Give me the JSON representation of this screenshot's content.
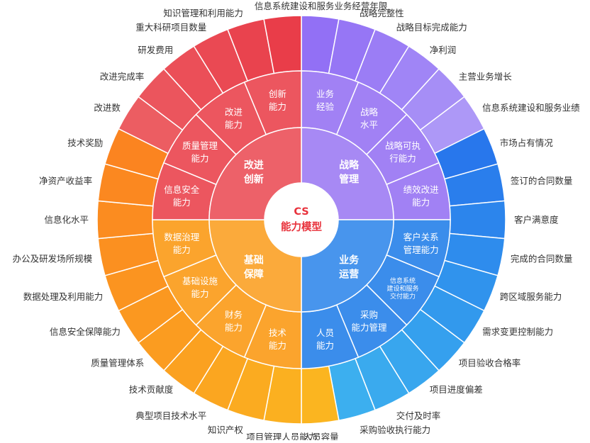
{
  "center": {
    "line1": "CS",
    "line2": "能力模型"
  },
  "colors": {
    "innovation": "#eb4b55",
    "strategy": "#9b79f3",
    "operation": "#2f86ea",
    "support": "#fb9e20",
    "line": "#ffffff",
    "text": "#333333",
    "center_text": "#e8323c"
  },
  "quadrants": [
    {
      "id": "strategy",
      "label": [
        "战略",
        "管理"
      ],
      "color": "#9b79f3",
      "start": 0,
      "end": 90,
      "subs": [
        {
          "label": [
            "业务",
            "经验"
          ],
          "start": 0,
          "end": 22.5
        },
        {
          "label": [
            "战略",
            "水平"
          ],
          "start": 22.5,
          "end": 45
        },
        {
          "label": [
            "战略可执",
            "行能力"
          ],
          "start": 45,
          "end": 67.5
        },
        {
          "label": [
            "绩效改进",
            "能力"
          ],
          "start": 67.5,
          "end": 90
        }
      ]
    },
    {
      "id": "operation",
      "label": [
        "业务",
        "运营"
      ],
      "color": "#2f86ea",
      "start": 90,
      "end": 180,
      "subs": [
        {
          "label": [
            "客户关系",
            "管理能力"
          ],
          "start": 90,
          "end": 112.5
        },
        {
          "label": [
            "信息系统",
            "建设和服务",
            "交付能力"
          ],
          "small": true,
          "start": 112.5,
          "end": 135
        },
        {
          "label": [
            "采购",
            "能力管理"
          ],
          "start": 135,
          "end": 157.5
        },
        {
          "label": [
            "人员",
            "能力"
          ],
          "start": 157.5,
          "end": 180
        }
      ]
    },
    {
      "id": "support",
      "label": [
        "基础",
        "保障"
      ],
      "color": "#fb9e20",
      "start": 180,
      "end": 270,
      "subs": [
        {
          "label": [
            "技术",
            "能力"
          ],
          "start": 180,
          "end": 202.5
        },
        {
          "label": [
            "财务",
            "能力"
          ],
          "start": 202.5,
          "end": 225
        },
        {
          "label": [
            "基础设施",
            "能力"
          ],
          "start": 225,
          "end": 247.5
        },
        {
          "label": [
            "数据治理",
            "能力"
          ],
          "start": 247.5,
          "end": 270
        }
      ]
    },
    {
      "id": "innovation",
      "label": [
        "改进",
        "创新"
      ],
      "color": "#eb4b55",
      "start": 270,
      "end": 360,
      "subs": [
        {
          "label": [
            "信息安全",
            "能力"
          ],
          "start": 270,
          "end": 292.5
        },
        {
          "label": [
            "质量管理",
            "能力"
          ],
          "start": 292.5,
          "end": 315
        },
        {
          "label": [
            "改进",
            "能力"
          ],
          "start": 315,
          "end": 337.5
        },
        {
          "label": [
            "创新",
            "能力"
          ],
          "start": 337.5,
          "end": 360
        }
      ]
    }
  ],
  "outer": [
    {
      "label": "信息系统建设和服务业务经营年限",
      "color": "#9270f5"
    },
    {
      "label": "战略完整性",
      "color": "#9676f5"
    },
    {
      "label": "战略目标完成能力",
      "color": "#9b7df5"
    },
    {
      "label": "净利润",
      "color": "#a085f6"
    },
    {
      "label": "主营业务增长",
      "color": "#a68ef6"
    },
    {
      "label": "信息系统建设和服务业绩",
      "color": "#ad98f7"
    },
    {
      "label": "市场占有情况",
      "color": "#2877ec"
    },
    {
      "label": "签订的合同数量",
      "color": "#2a7eec"
    },
    {
      "label": "客户满意度",
      "color": "#2c85ec"
    },
    {
      "label": "完成的合同数量",
      "color": "#2e8ced"
    },
    {
      "label": "跨区域服务能力",
      "color": "#3093ed"
    },
    {
      "label": "需求变更控制能力",
      "color": "#3299ed"
    },
    {
      "label": "项目验收合格率",
      "color": "#35a0ee"
    },
    {
      "label": "项目进度偏差",
      "color": "#38a6ee"
    },
    {
      "label": "交付及时率",
      "color": "#3aaaee"
    },
    {
      "label": "采购验收执行能力",
      "color": "#3cafef"
    },
    {
      "label": "人员容量",
      "color": "#fbb520"
    },
    {
      "label": "项目管理人员能力",
      "color": "#fbb020"
    },
    {
      "label": "知识产权",
      "color": "#fbab20"
    },
    {
      "label": "典型项目技术水平",
      "color": "#fba620"
    },
    {
      "label": "技术贡献度",
      "color": "#fba120"
    },
    {
      "label": "质量管理体系",
      "color": "#fb9c20"
    },
    {
      "label": "信息安全保障能力",
      "color": "#fb9820"
    },
    {
      "label": "数据处理及利用能力",
      "color": "#fb9420"
    },
    {
      "label": "办公及研发场所规模",
      "color": "#fb9020"
    },
    {
      "label": "信息化水平",
      "color": "#fb8c20"
    },
    {
      "label": "净资产收益率",
      "color": "#fb8820"
    },
    {
      "label": "技术奖励",
      "color": "#fb8420"
    },
    {
      "label": "改进数",
      "color": "#ec5d62"
    },
    {
      "label": "改进完成率",
      "color": "#eb555d"
    },
    {
      "label": "研发费用",
      "color": "#eb4f58"
    },
    {
      "label": "重大科研项目数量",
      "color": "#ea4953"
    },
    {
      "label": "知识管理和利用能力",
      "color": "#e9434e"
    },
    {
      "label": "",
      "color": "#e93d49"
    }
  ]
}
